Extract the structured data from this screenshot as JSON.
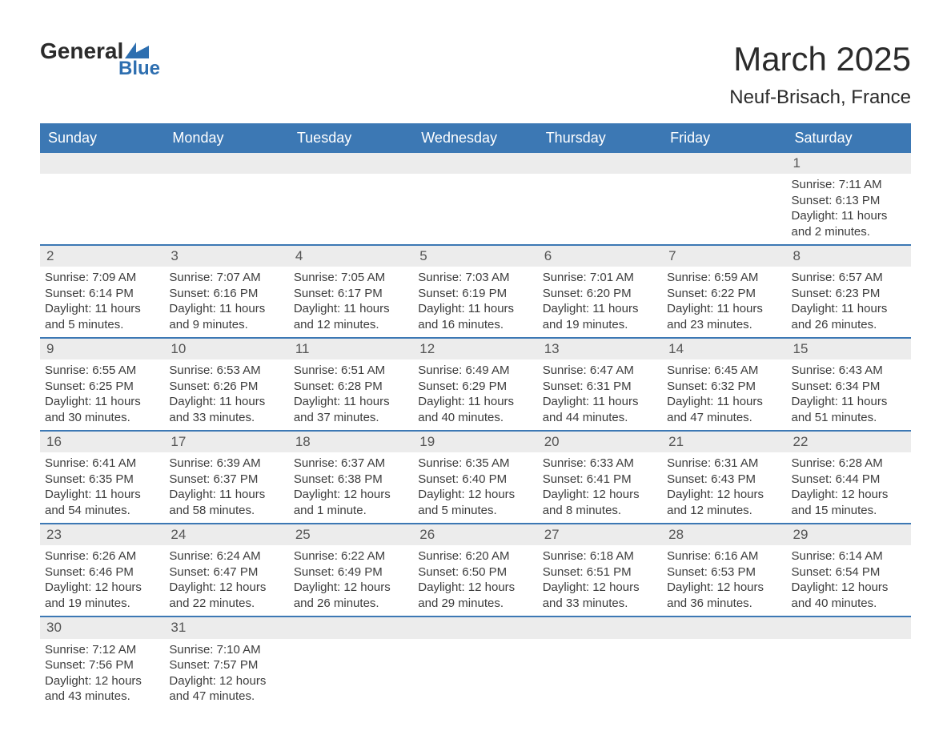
{
  "logo": {
    "word1": "General",
    "word2": "Blue"
  },
  "title": {
    "month": "March 2025",
    "location": "Neuf-Brisach, France"
  },
  "colors": {
    "header_bg": "#3c78b4",
    "header_text": "#ffffff",
    "daynum_bg": "#ececec",
    "row_divider": "#3c78b4",
    "body_text": "#3c3c3c",
    "logo_blue": "#2e6fb0"
  },
  "typography": {
    "title_fontsize": 42,
    "location_fontsize": 24,
    "header_fontsize": 18,
    "cell_fontsize": 15,
    "daynum_fontsize": 17
  },
  "calendar": {
    "type": "table",
    "columns": [
      "Sunday",
      "Monday",
      "Tuesday",
      "Wednesday",
      "Thursday",
      "Friday",
      "Saturday"
    ],
    "weeks": [
      [
        {
          "blank": true
        },
        {
          "blank": true
        },
        {
          "blank": true
        },
        {
          "blank": true
        },
        {
          "blank": true
        },
        {
          "blank": true
        },
        {
          "day": "1",
          "sunrise": "Sunrise: 7:11 AM",
          "sunset": "Sunset: 6:13 PM",
          "daylight": "Daylight: 11 hours and 2 minutes."
        }
      ],
      [
        {
          "day": "2",
          "sunrise": "Sunrise: 7:09 AM",
          "sunset": "Sunset: 6:14 PM",
          "daylight": "Daylight: 11 hours and 5 minutes."
        },
        {
          "day": "3",
          "sunrise": "Sunrise: 7:07 AM",
          "sunset": "Sunset: 6:16 PM",
          "daylight": "Daylight: 11 hours and 9 minutes."
        },
        {
          "day": "4",
          "sunrise": "Sunrise: 7:05 AM",
          "sunset": "Sunset: 6:17 PM",
          "daylight": "Daylight: 11 hours and 12 minutes."
        },
        {
          "day": "5",
          "sunrise": "Sunrise: 7:03 AM",
          "sunset": "Sunset: 6:19 PM",
          "daylight": "Daylight: 11 hours and 16 minutes."
        },
        {
          "day": "6",
          "sunrise": "Sunrise: 7:01 AM",
          "sunset": "Sunset: 6:20 PM",
          "daylight": "Daylight: 11 hours and 19 minutes."
        },
        {
          "day": "7",
          "sunrise": "Sunrise: 6:59 AM",
          "sunset": "Sunset: 6:22 PM",
          "daylight": "Daylight: 11 hours and 23 minutes."
        },
        {
          "day": "8",
          "sunrise": "Sunrise: 6:57 AM",
          "sunset": "Sunset: 6:23 PM",
          "daylight": "Daylight: 11 hours and 26 minutes."
        }
      ],
      [
        {
          "day": "9",
          "sunrise": "Sunrise: 6:55 AM",
          "sunset": "Sunset: 6:25 PM",
          "daylight": "Daylight: 11 hours and 30 minutes."
        },
        {
          "day": "10",
          "sunrise": "Sunrise: 6:53 AM",
          "sunset": "Sunset: 6:26 PM",
          "daylight": "Daylight: 11 hours and 33 minutes."
        },
        {
          "day": "11",
          "sunrise": "Sunrise: 6:51 AM",
          "sunset": "Sunset: 6:28 PM",
          "daylight": "Daylight: 11 hours and 37 minutes."
        },
        {
          "day": "12",
          "sunrise": "Sunrise: 6:49 AM",
          "sunset": "Sunset: 6:29 PM",
          "daylight": "Daylight: 11 hours and 40 minutes."
        },
        {
          "day": "13",
          "sunrise": "Sunrise: 6:47 AM",
          "sunset": "Sunset: 6:31 PM",
          "daylight": "Daylight: 11 hours and 44 minutes."
        },
        {
          "day": "14",
          "sunrise": "Sunrise: 6:45 AM",
          "sunset": "Sunset: 6:32 PM",
          "daylight": "Daylight: 11 hours and 47 minutes."
        },
        {
          "day": "15",
          "sunrise": "Sunrise: 6:43 AM",
          "sunset": "Sunset: 6:34 PM",
          "daylight": "Daylight: 11 hours and 51 minutes."
        }
      ],
      [
        {
          "day": "16",
          "sunrise": "Sunrise: 6:41 AM",
          "sunset": "Sunset: 6:35 PM",
          "daylight": "Daylight: 11 hours and 54 minutes."
        },
        {
          "day": "17",
          "sunrise": "Sunrise: 6:39 AM",
          "sunset": "Sunset: 6:37 PM",
          "daylight": "Daylight: 11 hours and 58 minutes."
        },
        {
          "day": "18",
          "sunrise": "Sunrise: 6:37 AM",
          "sunset": "Sunset: 6:38 PM",
          "daylight": "Daylight: 12 hours and 1 minute."
        },
        {
          "day": "19",
          "sunrise": "Sunrise: 6:35 AM",
          "sunset": "Sunset: 6:40 PM",
          "daylight": "Daylight: 12 hours and 5 minutes."
        },
        {
          "day": "20",
          "sunrise": "Sunrise: 6:33 AM",
          "sunset": "Sunset: 6:41 PM",
          "daylight": "Daylight: 12 hours and 8 minutes."
        },
        {
          "day": "21",
          "sunrise": "Sunrise: 6:31 AM",
          "sunset": "Sunset: 6:43 PM",
          "daylight": "Daylight: 12 hours and 12 minutes."
        },
        {
          "day": "22",
          "sunrise": "Sunrise: 6:28 AM",
          "sunset": "Sunset: 6:44 PM",
          "daylight": "Daylight: 12 hours and 15 minutes."
        }
      ],
      [
        {
          "day": "23",
          "sunrise": "Sunrise: 6:26 AM",
          "sunset": "Sunset: 6:46 PM",
          "daylight": "Daylight: 12 hours and 19 minutes."
        },
        {
          "day": "24",
          "sunrise": "Sunrise: 6:24 AM",
          "sunset": "Sunset: 6:47 PM",
          "daylight": "Daylight: 12 hours and 22 minutes."
        },
        {
          "day": "25",
          "sunrise": "Sunrise: 6:22 AM",
          "sunset": "Sunset: 6:49 PM",
          "daylight": "Daylight: 12 hours and 26 minutes."
        },
        {
          "day": "26",
          "sunrise": "Sunrise: 6:20 AM",
          "sunset": "Sunset: 6:50 PM",
          "daylight": "Daylight: 12 hours and 29 minutes."
        },
        {
          "day": "27",
          "sunrise": "Sunrise: 6:18 AM",
          "sunset": "Sunset: 6:51 PM",
          "daylight": "Daylight: 12 hours and 33 minutes."
        },
        {
          "day": "28",
          "sunrise": "Sunrise: 6:16 AM",
          "sunset": "Sunset: 6:53 PM",
          "daylight": "Daylight: 12 hours and 36 minutes."
        },
        {
          "day": "29",
          "sunrise": "Sunrise: 6:14 AM",
          "sunset": "Sunset: 6:54 PM",
          "daylight": "Daylight: 12 hours and 40 minutes."
        }
      ],
      [
        {
          "day": "30",
          "sunrise": "Sunrise: 7:12 AM",
          "sunset": "Sunset: 7:56 PM",
          "daylight": "Daylight: 12 hours and 43 minutes."
        },
        {
          "day": "31",
          "sunrise": "Sunrise: 7:10 AM",
          "sunset": "Sunset: 7:57 PM",
          "daylight": "Daylight: 12 hours and 47 minutes."
        },
        {
          "blank": true
        },
        {
          "blank": true
        },
        {
          "blank": true
        },
        {
          "blank": true
        },
        {
          "blank": true
        }
      ]
    ]
  }
}
